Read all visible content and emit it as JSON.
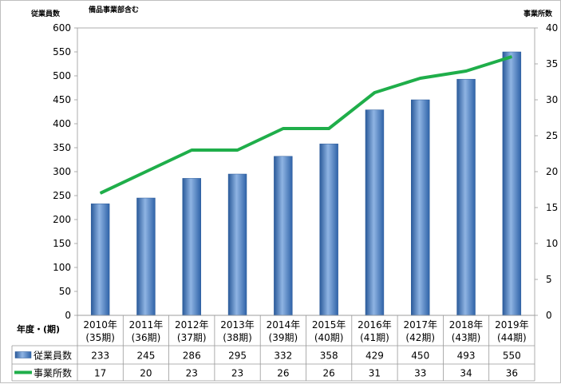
{
  "chart_data": {
    "type": "bar",
    "title": "",
    "subtitle": "備品事業部含む",
    "y1_label": "従業員数",
    "y2_label": "事業所数",
    "x_axis_label": "年度・(期)",
    "categories": [
      [
        "2010年",
        "(35期)"
      ],
      [
        "2011年",
        "(36期)"
      ],
      [
        "2012年",
        "(37期)"
      ],
      [
        "2013年",
        "(38期)"
      ],
      [
        "2014年",
        "(39期)"
      ],
      [
        "2015年",
        "(40期)"
      ],
      [
        "2016年",
        "(41期)"
      ],
      [
        "2017年",
        "(42期)"
      ],
      [
        "2018年",
        "(43期)"
      ],
      [
        "2019年",
        "(44期)"
      ]
    ],
    "series": [
      {
        "name": "従業員数",
        "type": "bar",
        "axis": "left",
        "values": [
          233,
          245,
          286,
          295,
          332,
          358,
          429,
          450,
          493,
          550
        ]
      },
      {
        "name": "事業所数",
        "type": "line",
        "axis": "right",
        "values": [
          17,
          20,
          23,
          23,
          26,
          26,
          31,
          33,
          34,
          36
        ]
      }
    ],
    "y1_lim": [
      0,
      600
    ],
    "y1_ticks": [
      0,
      50,
      100,
      150,
      200,
      250,
      300,
      350,
      400,
      450,
      500,
      550,
      600
    ],
    "y2_lim": [
      0,
      40
    ],
    "y2_ticks": [
      0,
      5,
      10,
      15,
      20,
      25,
      30,
      35,
      40
    ],
    "grid": false,
    "legend": "data-table",
    "colors": {
      "bar": "#4f81bd",
      "bar_dark": "#2a5a9a",
      "bar_light": "#8fb4e3",
      "line": "#1fae4a"
    }
  }
}
